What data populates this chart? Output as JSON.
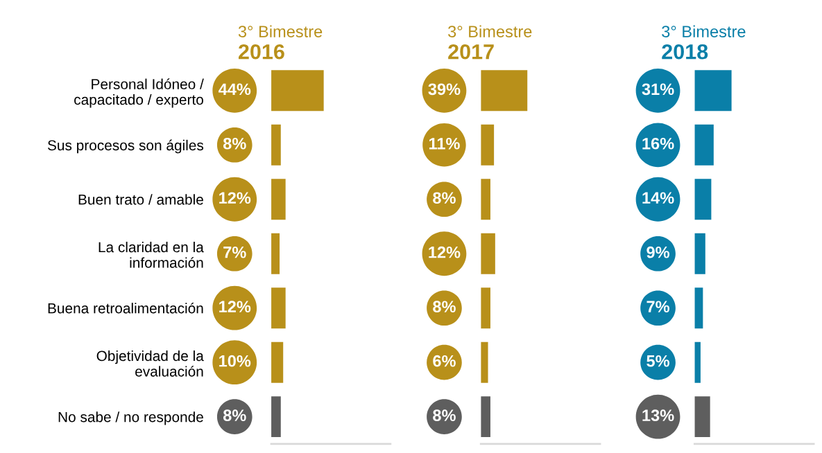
{
  "chart_data": [
    {
      "type": "bar",
      "orientation": "horizontal",
      "subtitle": "3° Bimestre",
      "title": "2016",
      "tick_labels": "y",
      "categories": [
        "Personal Idóneo /\ncapacitado / experto",
        "Sus procesos son ágiles",
        "Buen trato / amable",
        "La claridad en la\ninformación",
        "Buena retroalimentación",
        "Objetividad de la\nevaluación",
        "No sabe / no responde"
      ],
      "values": [
        44,
        8,
        12,
        7,
        12,
        10,
        8
      ],
      "value_labels": [
        "44%",
        "8%",
        "12%",
        "7%",
        "12%",
        "10%",
        "8%"
      ],
      "colors": [
        "#b8901a",
        "#b8901a",
        "#b8901a",
        "#b8901a",
        "#b8901a",
        "#b8901a",
        "#5e5e5e"
      ],
      "xlim": [
        0,
        100
      ]
    },
    {
      "type": "bar",
      "orientation": "horizontal",
      "subtitle": "3° Bimestre",
      "title": "2017",
      "tick_labels": false,
      "categories": [
        null,
        null,
        null,
        null,
        null,
        null,
        null
      ],
      "values": [
        39,
        11,
        8,
        12,
        8,
        6,
        8
      ],
      "value_labels": [
        "39%",
        "11%",
        "8%",
        "12%",
        "8%",
        "6%",
        "8%"
      ],
      "colors": [
        "#b8901a",
        "#b8901a",
        "#b8901a",
        "#b8901a",
        "#b8901a",
        "#b8901a",
        "#5e5e5e"
      ],
      "xlim": [
        0,
        100
      ]
    },
    {
      "type": "bar",
      "orientation": "horizontal",
      "subtitle": "3° Bimestre",
      "title": "2018",
      "tick_labels": false,
      "categories": [
        null,
        null,
        null,
        null,
        null,
        null,
        null
      ],
      "values": [
        31,
        16,
        14,
        9,
        7,
        5,
        13
      ],
      "value_labels": [
        "31%",
        "16%",
        "14%",
        "9%",
        "7%",
        "5%",
        "13%"
      ],
      "colors": [
        "#0a7fa8",
        "#0a7fa8",
        "#0a7fa8",
        "#0a7fa8",
        "#0a7fa8",
        "#0a7fa8",
        "#5e5e5e"
      ],
      "xlim": [
        0,
        100
      ]
    }
  ]
}
